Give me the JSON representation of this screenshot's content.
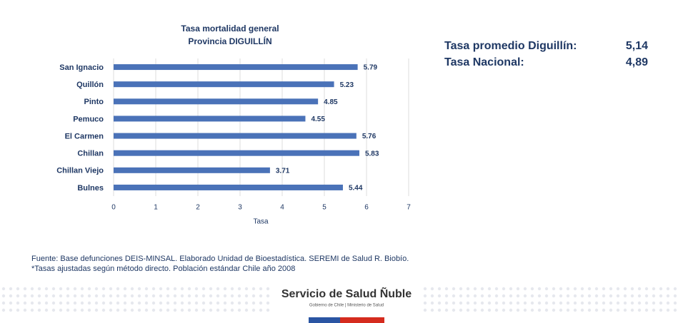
{
  "chart_data": {
    "type": "barh",
    "title": "Tasa mortalidad general",
    "subtitle": "Provincia DIGUILLÍN",
    "categories": [
      "San Ignacio",
      "Quillón",
      "Pinto",
      "Pemuco",
      "El Carmen",
      "Chillan",
      "Chillan Viejo",
      "Bulnes"
    ],
    "values": [
      5.79,
      5.23,
      4.85,
      4.55,
      5.76,
      5.83,
      3.71,
      5.44
    ],
    "color": "#4a72b8",
    "xlabel": "Tasa",
    "xlim": [
      0,
      7
    ],
    "xticks": [
      0,
      1,
      2,
      3,
      4,
      5,
      6,
      7
    ],
    "grid": true
  },
  "summary": [
    {
      "label": "Tasa promedio Diguillín:",
      "value": "5,14"
    },
    {
      "label": "Tasa Nacional:",
      "value": "4,89"
    }
  ],
  "footnotes": [
    "Fuente: Base defunciones DEIS-MINSAL. Elaborado Unidad de Bioestadística. SEREMI de Salud R. Biobío.",
    "*Tasas ajustadas según método directo. Población estándar Chile año 2008"
  ],
  "logo": {
    "name": "Servicio de Salud Ñuble",
    "tagline": "Gobierno de Chile | Ministerio de Salud"
  }
}
